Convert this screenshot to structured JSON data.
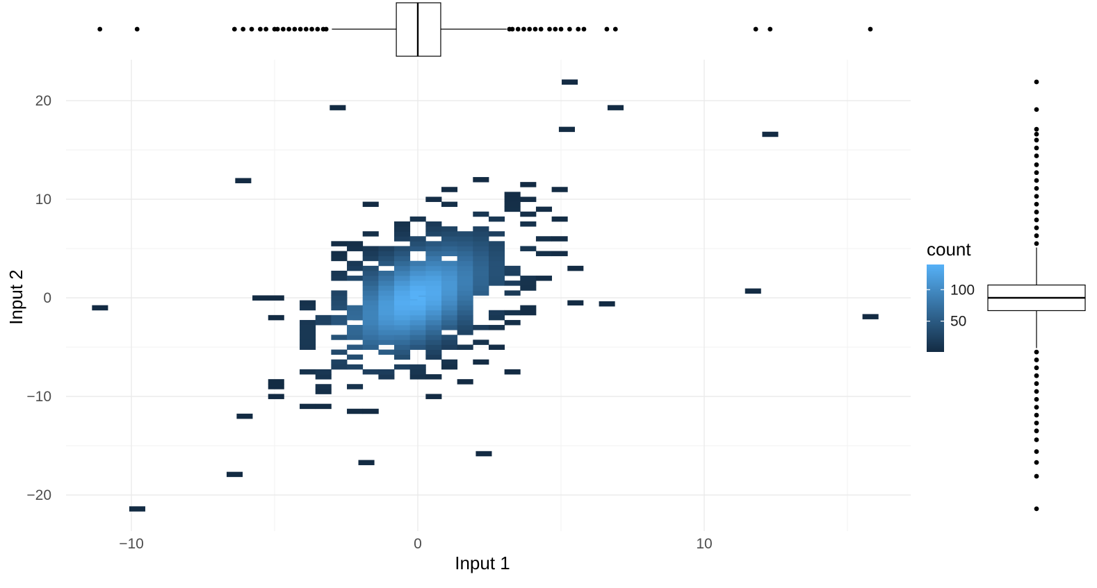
{
  "chart_data": {
    "type": "heatmap",
    "subtype": "2d-bin-count-with-marginal-boxplots",
    "xlabel": "Input 1",
    "ylabel": "Input 2",
    "xlim": [
      -12.9,
      17.3
    ],
    "ylim": [
      -23.5,
      24.0
    ],
    "x_ticks": [
      -10,
      0,
      10
    ],
    "x_tick_labels": [
      "−10",
      "0",
      "10"
    ],
    "y_ticks": [
      -20,
      -10,
      0,
      10,
      20
    ],
    "y_tick_labels": [
      "−20",
      "−10",
      "0",
      "10",
      "20"
    ],
    "grid": true,
    "legend": {
      "title": "count",
      "position": "right",
      "breaks": [
        50,
        100
      ],
      "labels": [
        "50",
        "100"
      ],
      "range": [
        1,
        140
      ],
      "colors": {
        "low": "#132B43",
        "high": "#56B1F7"
      }
    },
    "binwidth": [
      0.55,
      0.5
    ],
    "bins": [
      {
        "x": 0.0,
        "y": 0.0,
        "count": 140
      },
      {
        "x": -0.3,
        "y": -0.4,
        "count": 130
      },
      {
        "x": 0.3,
        "y": 0.4,
        "count": 125
      },
      {
        "x": -0.7,
        "y": -0.6,
        "count": 110
      },
      {
        "x": 0.7,
        "y": 0.6,
        "count": 105
      },
      {
        "x": 1.0,
        "y": 1.0,
        "count": 90
      },
      {
        "x": -1.0,
        "y": -1.0,
        "count": 95
      },
      {
        "x": -1.5,
        "y": -1.4,
        "count": 70
      },
      {
        "x": 1.5,
        "y": 1.3,
        "count": 70
      },
      {
        "x": -2.0,
        "y": -2.0,
        "count": 45
      },
      {
        "x": 2.0,
        "y": 1.8,
        "count": 40
      },
      {
        "x": -5.5,
        "y": 0.0,
        "count": 1
      },
      {
        "x": -11.1,
        "y": -1.0,
        "count": 1
      },
      {
        "x": -9.8,
        "y": -21.4,
        "count": 1
      },
      {
        "x": -6.4,
        "y": -17.9,
        "count": 1
      },
      {
        "x": -2.8,
        "y": 19.3,
        "count": 1
      },
      {
        "x": 5.3,
        "y": 21.9,
        "count": 1
      },
      {
        "x": 6.9,
        "y": 19.3,
        "count": 1
      },
      {
        "x": 5.2,
        "y": 17.1,
        "count": 1
      },
      {
        "x": 12.3,
        "y": 16.6,
        "count": 1
      },
      {
        "x": 11.7,
        "y": 0.7,
        "count": 1
      },
      {
        "x": 15.8,
        "y": -1.9,
        "count": 1
      },
      {
        "x": -6.1,
        "y": 11.9,
        "count": 1
      },
      {
        "x": 2.3,
        "y": -15.8,
        "count": 1
      },
      {
        "x": -1.8,
        "y": -16.7,
        "count": 1
      },
      {
        "x": 6.6,
        "y": -0.6,
        "count": 1
      }
    ],
    "marginal_x": {
      "q1": -0.75,
      "median": 0.0,
      "q3": 0.8,
      "whisker_low": -3.0,
      "whisker_high": 3.1,
      "outliers": [
        -11.1,
        -9.8,
        -6.4,
        -6.1,
        -5.8,
        -5.5,
        -5.3,
        -5.0,
        -4.9,
        -4.7,
        -4.5,
        -4.3,
        -4.1,
        -3.9,
        -3.7,
        -3.5,
        -3.3,
        -3.2,
        3.2,
        3.3,
        3.5,
        3.7,
        3.9,
        4.1,
        4.3,
        4.6,
        4.8,
        5.0,
        5.3,
        5.6,
        5.8,
        6.6,
        6.9,
        11.8,
        12.3,
        15.8
      ]
    },
    "marginal_y": {
      "q1": -1.3,
      "median": 0.0,
      "q3": 1.3,
      "whisker_low": -5.1,
      "whisker_high": 5.1,
      "outliers": [
        21.9,
        19.1,
        17.1,
        16.6,
        16.0,
        15.2,
        14.4,
        13.5,
        12.7,
        11.9,
        11.1,
        10.3,
        9.5,
        8.7,
        7.9,
        7.1,
        6.3,
        5.5,
        -5.5,
        -6.3,
        -7.1,
        -7.9,
        -8.7,
        -9.5,
        -10.3,
        -11.1,
        -11.9,
        -12.7,
        -13.5,
        -14.4,
        -15.6,
        -16.7,
        -18.1,
        -21.4
      ]
    }
  }
}
